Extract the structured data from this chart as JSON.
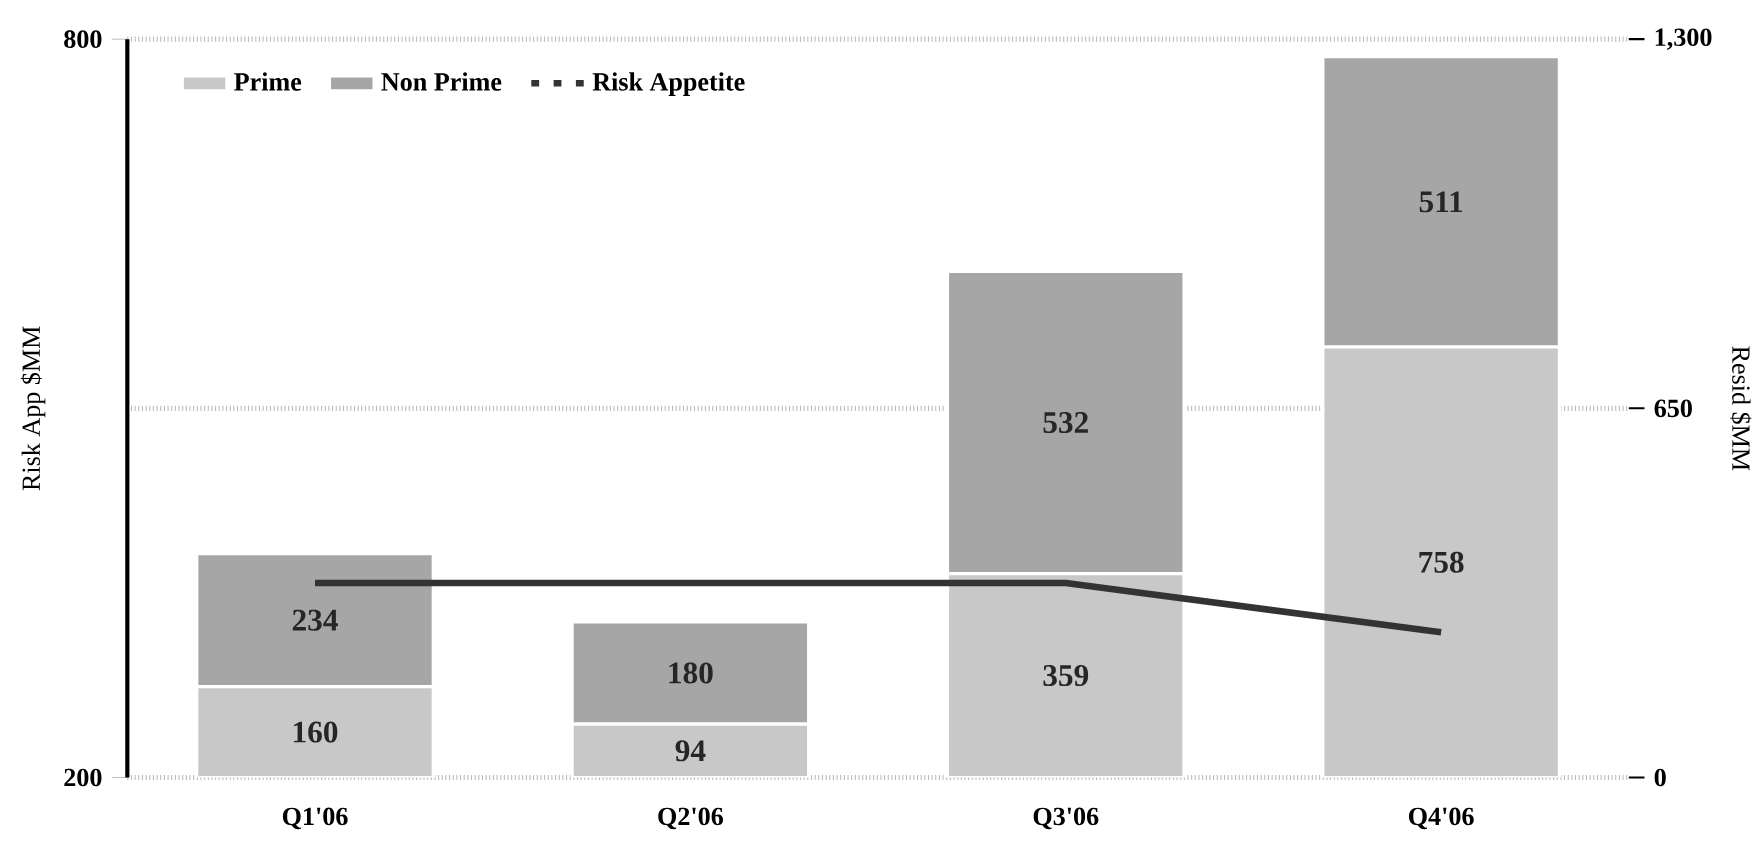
{
  "chart_data": {
    "type": "bar",
    "categories": [
      "Q1'06",
      "Q2'06",
      "Q3'06",
      "Q4'06"
    ],
    "series": [
      {
        "name": "Prime",
        "axis": "y2",
        "color": "#c8c8c8",
        "values": [
          160,
          94,
          359,
          758
        ],
        "value_labels": [
          "160",
          "94",
          "359",
          "758"
        ]
      },
      {
        "name": "Non Prime",
        "axis": "y2",
        "color": "#a6a6a6",
        "values": [
          234,
          180,
          532,
          511
        ],
        "value_labels": [
          "234",
          "180",
          "532",
          "511"
        ]
      },
      {
        "name": "Risk Appetite",
        "type": "line",
        "color": "#333333",
        "values": [
          358,
          358,
          358,
          318
        ]
      }
    ],
    "stacked": true,
    "ylabel": "Risk App $MM",
    "y2label": "Resid $MM",
    "ylim": [
      200,
      800
    ],
    "yticks": [
      200,
      800
    ],
    "y2lim": [
      0,
      1300
    ],
    "y2ticks": [
      0,
      650,
      {
        "value": 1300,
        "label": "1,300"
      }
    ],
    "grid": "y2",
    "legend": "top left"
  }
}
